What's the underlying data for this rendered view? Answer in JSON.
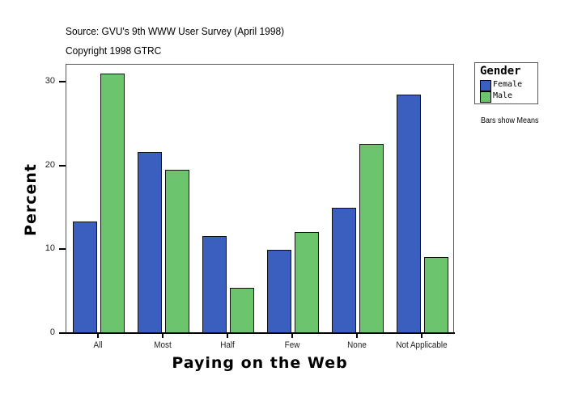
{
  "header": {
    "source": "Source: GVU's 9th WWW User Survey (April 1998)",
    "copyright": "Copyright 1998 GTRC"
  },
  "legend": {
    "title": "Gender",
    "items": [
      {
        "label": "Female",
        "color": "#3a5fbf"
      },
      {
        "label": "Male",
        "color": "#6cc46e"
      }
    ]
  },
  "note": "Bars show Means",
  "axes": {
    "xlabel": "Paying on the Web",
    "ylabel": "Percent",
    "yticks": [
      "0",
      "10",
      "20",
      "30"
    ]
  },
  "chart_data": {
    "type": "bar",
    "title": "",
    "subtitle": "Source: GVU's 9th WWW User Survey (April 1998) / Copyright 1998 GTRC",
    "xlabel": "Paying on the Web",
    "ylabel": "Percent",
    "categories": [
      "All",
      "Most",
      "Half",
      "Few",
      "None",
      "Not Applicable"
    ],
    "series": [
      {
        "name": "Female",
        "color": "#3a5fbf",
        "values": [
          13.3,
          21.6,
          11.6,
          9.9,
          14.9,
          28.4
        ]
      },
      {
        "name": "Male",
        "color": "#6cc46e",
        "values": [
          31.0,
          19.5,
          5.4,
          12.1,
          22.6,
          9.1
        ]
      }
    ],
    "ylim": [
      0,
      32
    ],
    "yticks": [
      0,
      10,
      20,
      30
    ],
    "grid": false,
    "legend_position": "right",
    "annotations": [
      "Bars show Means"
    ]
  }
}
